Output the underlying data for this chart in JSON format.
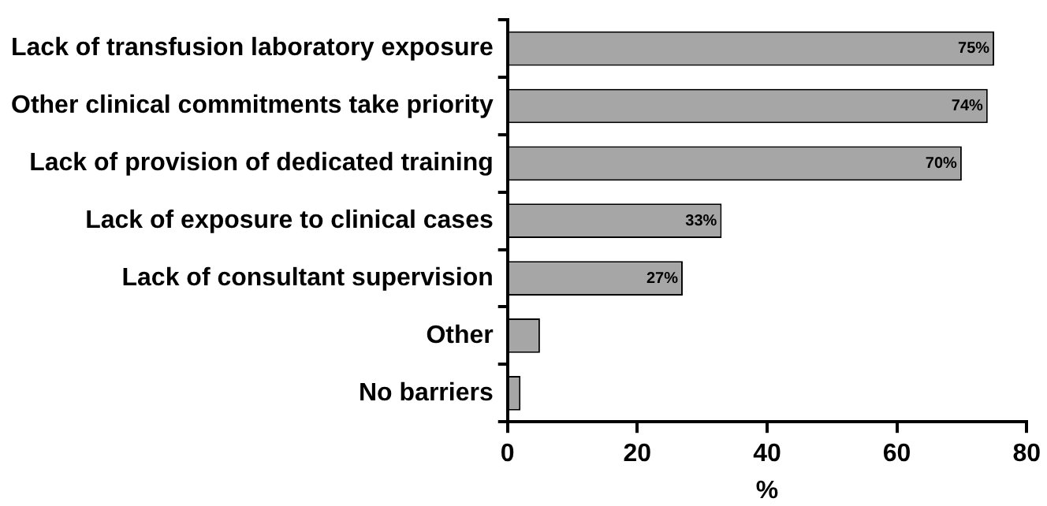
{
  "chart_data": {
    "type": "bar",
    "orientation": "horizontal",
    "xlabel": "%",
    "categories": [
      "Lack of transfusion laboratory exposure",
      "Other clinical commitments take priority",
      "Lack of provision of dedicated training",
      "Lack of exposure to clinical cases",
      "Lack of consultant supervision",
      "Other",
      "No barriers"
    ],
    "values": [
      75,
      74,
      70,
      33,
      27,
      5,
      2
    ],
    "value_labels": [
      "75%",
      "74%",
      "70%",
      "33%",
      "27%",
      null,
      null
    ],
    "color": "#a6a6a6",
    "xlim": [
      0,
      80
    ],
    "xticks": [
      0,
      20,
      40,
      60,
      80
    ],
    "grid": false,
    "legend": false
  }
}
